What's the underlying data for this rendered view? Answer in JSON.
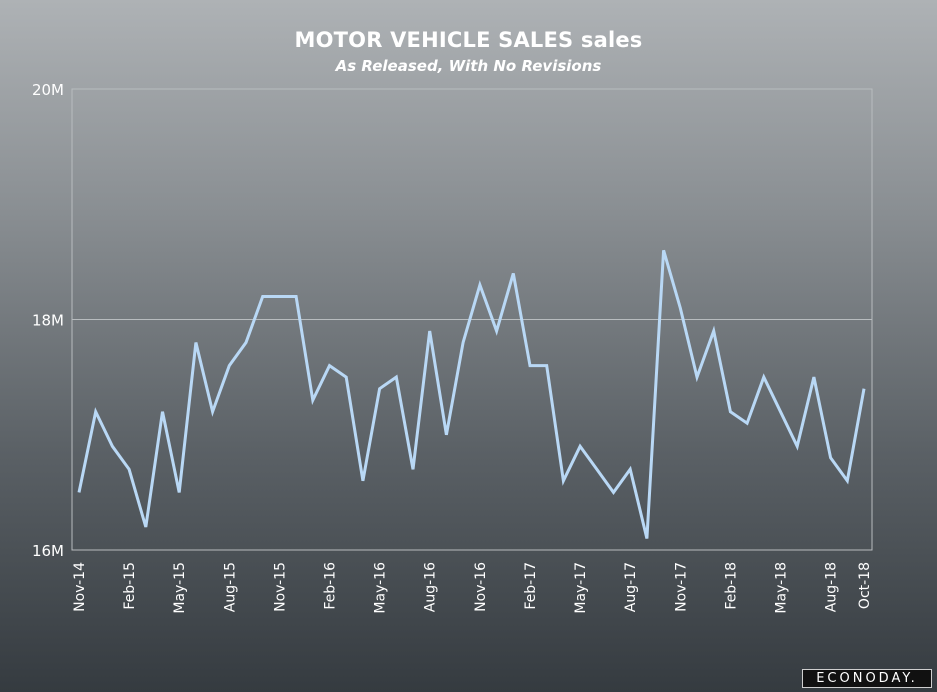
{
  "header": {
    "title": "MOTOR VEHICLE SALES sales",
    "subtitle": "As Released, With No Revisions"
  },
  "branding": {
    "logo_text": "ECONODAY."
  },
  "colors": {
    "background_top": "#aeb2b5",
    "background_bottom": "#353b40",
    "line": "#b9d8f5",
    "grid": "#b8bcbf",
    "text": "#ffffff"
  },
  "chart_data": {
    "type": "line",
    "title": "MOTOR VEHICLE SALES sales",
    "subtitle": "As Released, With No Revisions",
    "xlabel": "",
    "ylabel": "",
    "ylim": [
      16,
      20
    ],
    "y_unit": "M",
    "y_ticks": [
      {
        "value": 16,
        "label": "16M"
      },
      {
        "value": 18,
        "label": "18M"
      },
      {
        "value": 20,
        "label": "20M"
      }
    ],
    "x": [
      "Nov-14",
      "Dec-14",
      "Jan-15",
      "Feb-15",
      "Mar-15",
      "Apr-15",
      "May-15",
      "Jun-15",
      "Jul-15",
      "Aug-15",
      "Sep-15",
      "Oct-15",
      "Nov-15",
      "Dec-15",
      "Jan-16",
      "Feb-16",
      "Mar-16",
      "Apr-16",
      "May-16",
      "Jun-16",
      "Jul-16",
      "Aug-16",
      "Sep-16",
      "Oct-16",
      "Nov-16",
      "Dec-16",
      "Jan-17",
      "Feb-17",
      "Mar-17",
      "Apr-17",
      "May-17",
      "Jun-17",
      "Jul-17",
      "Aug-17",
      "Sep-17",
      "Oct-17",
      "Nov-17",
      "Dec-17",
      "Jan-18",
      "Feb-18",
      "Mar-18",
      "Apr-18",
      "May-18",
      "Jun-18",
      "Jul-18",
      "Aug-18",
      "Sep-18",
      "Oct-18"
    ],
    "x_tick_labels": [
      "Nov-14",
      "Feb-15",
      "May-15",
      "Aug-15",
      "Nov-15",
      "Feb-16",
      "May-16",
      "Aug-16",
      "Nov-16",
      "Feb-17",
      "May-17",
      "Aug-17",
      "Nov-17",
      "Feb-18",
      "May-18",
      "Aug-18",
      "Oct-18"
    ],
    "series": [
      {
        "values": [
          16.5,
          17.2,
          16.9,
          16.7,
          16.2,
          17.2,
          16.5,
          17.8,
          17.2,
          17.6,
          17.8,
          18.2,
          18.2,
          18.2,
          17.3,
          17.6,
          17.5,
          16.6,
          17.4,
          17.5,
          16.7,
          17.9,
          17.0,
          17.8,
          18.3,
          17.9,
          18.4,
          17.6,
          17.6,
          16.6,
          16.9,
          16.7,
          16.5,
          16.7,
          16.1,
          18.6,
          18.1,
          17.5,
          17.9,
          17.2,
          17.1,
          17.5,
          17.2,
          16.9,
          17.5,
          16.8,
          16.6,
          17.4
        ]
      }
    ],
    "grid": true,
    "legend": "none"
  }
}
